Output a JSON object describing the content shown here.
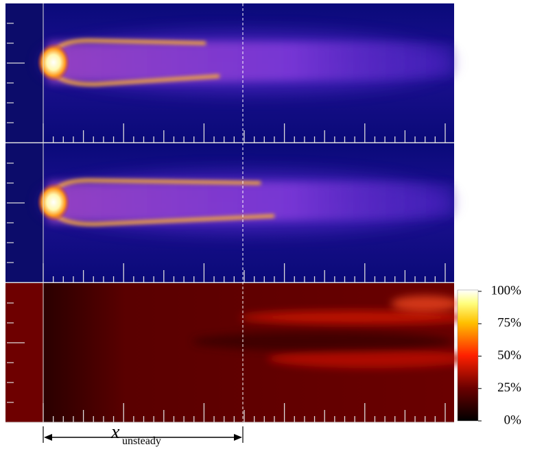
{
  "colorbar": {
    "ticks": [
      {
        "value": 100,
        "label": "100%"
      },
      {
        "value": 75,
        "label": "75%"
      },
      {
        "value": 50,
        "label": "50%"
      },
      {
        "value": 25,
        "label": "25%"
      },
      {
        "value": 0,
        "label": "0%"
      }
    ]
  },
  "annotation": {
    "symbol": "x",
    "subscript": "unsteady"
  }
}
